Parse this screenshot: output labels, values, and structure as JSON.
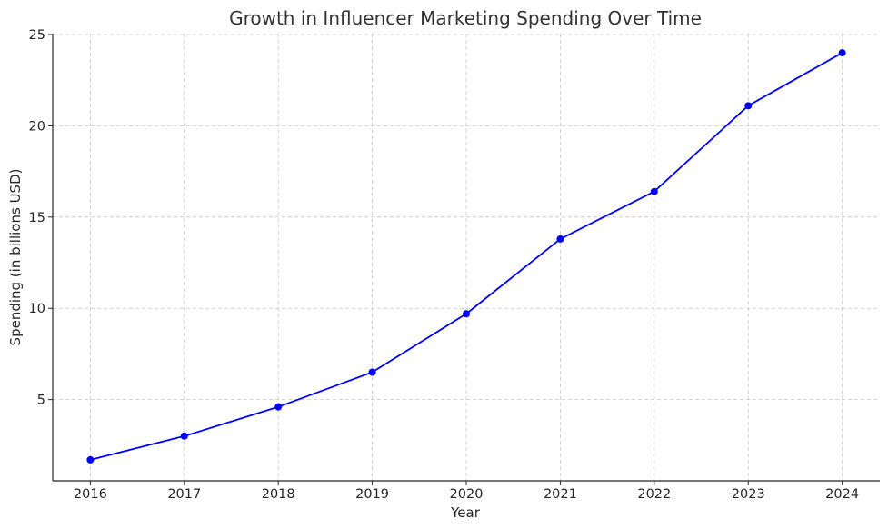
{
  "chart_data": {
    "type": "line",
    "title": "Growth in Influencer Marketing Spending Over Time",
    "xlabel": "Year",
    "ylabel": "Spending (in billions USD)",
    "x": [
      2016,
      2017,
      2018,
      2019,
      2020,
      2021,
      2022,
      2023,
      2024
    ],
    "x_tick_labels": [
      "2016",
      "2017",
      "2018",
      "2019",
      "2020",
      "2021",
      "2022",
      "2023",
      "2024"
    ],
    "y_ticks": [
      5,
      10,
      15,
      20,
      25
    ],
    "y_tick_labels": [
      "5",
      "10",
      "15",
      "20",
      "25"
    ],
    "xlim": [
      2015.6,
      2024.4
    ],
    "ylim": [
      0.55,
      25.05
    ],
    "grid": true,
    "series": [
      {
        "values": [
          1.7,
          3.0,
          4.6,
          6.5,
          9.7,
          13.8,
          16.4,
          21.1,
          24.0
        ],
        "color": "#0000ff",
        "marker": "circle"
      }
    ]
  }
}
